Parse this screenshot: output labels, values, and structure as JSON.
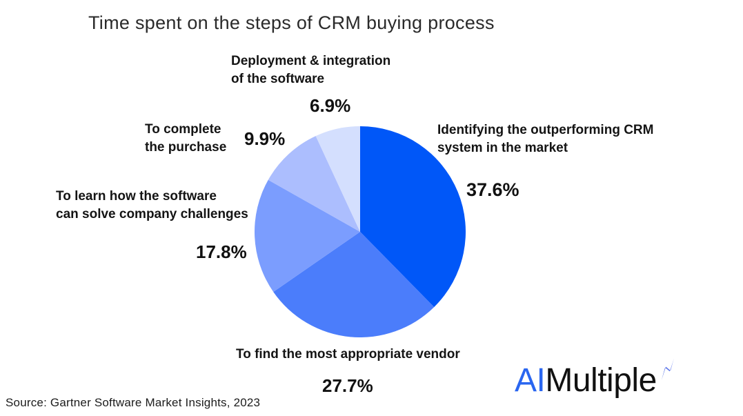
{
  "title": "Time spent on the steps of CRM buying process",
  "source_note": "Source: Gartner Software Market Insights, 2023",
  "chart_data": {
    "type": "pie",
    "title": "Time spent on the steps of CRM buying process",
    "start_angle_deg": -90,
    "direction": "clockwise",
    "legend_position": "callout-labels",
    "segments": [
      {
        "label": "Identifying the outperforming CRM system in the market",
        "value": 37.6,
        "color": "#0057F8"
      },
      {
        "label": "To find the most appropriate vendor",
        "value": 27.7,
        "color": "#4B7DFB"
      },
      {
        "label": "To learn how the software can solve company challenges",
        "value": 17.8,
        "color": "#7B9DFE"
      },
      {
        "label": "To complete the purchase",
        "value": 9.9,
        "color": "#ACBEFE"
      },
      {
        "label": "Deployment & integration of the software",
        "value": 6.9,
        "color": "#D4DFFE"
      }
    ]
  },
  "callouts": {
    "deployment": {
      "line1": "Deployment & integration",
      "line2": "of the software",
      "value": "6.9%"
    },
    "complete": {
      "line1": "To complete",
      "line2": "the purchase",
      "value": "9.9%"
    },
    "identify": {
      "line1": "Identifying the outperforming CRM",
      "line2": "system in the market",
      "value": "37.6%"
    },
    "learn": {
      "line1": "To learn how the software",
      "line2": "can solve company challenges",
      "value": "17.8%"
    },
    "vendor": {
      "line1": "To find the most appropriate vendor",
      "value": "27.7%"
    }
  },
  "logo": {
    "part1": "AI",
    "part2": "Multiple",
    "part1_color": "#2A66F0",
    "mark": "bolt-icon",
    "mark_gradient": [
      "#1d45d8",
      "#97a4fb"
    ]
  }
}
